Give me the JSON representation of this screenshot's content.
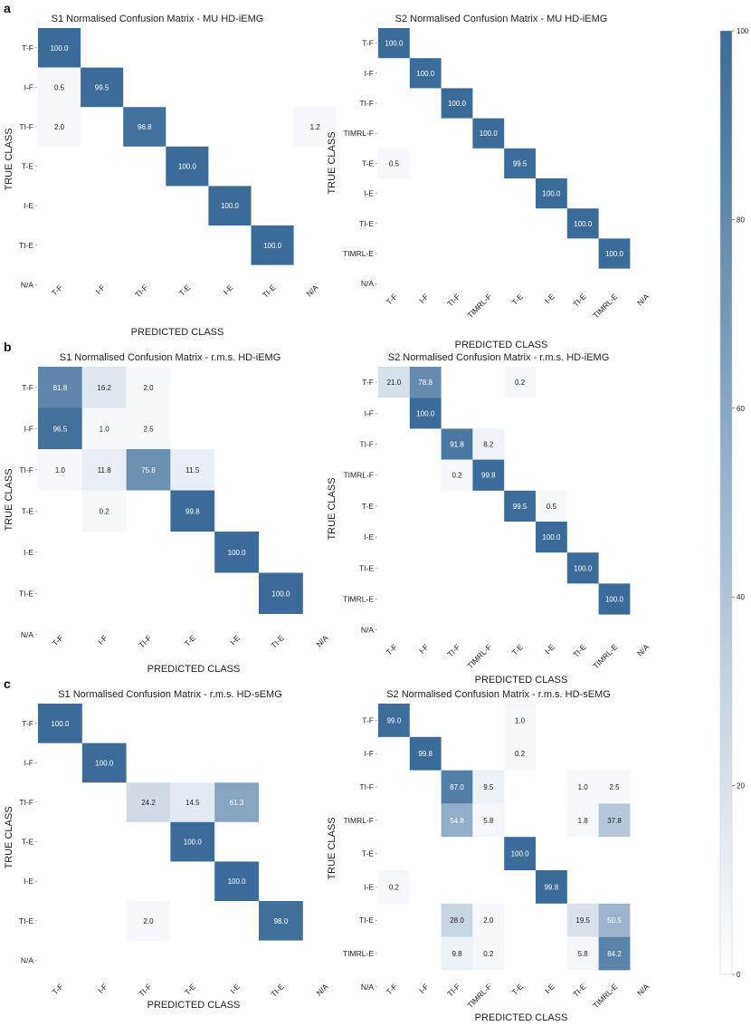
{
  "panel_labels": [
    "a",
    "b",
    "c"
  ],
  "colorbar": {
    "ticks": [
      "100",
      "80",
      "60",
      "40",
      "20",
      "0"
    ],
    "color_low": "#ffffff",
    "color_high": "#3b6c99"
  },
  "colors": {
    "cell_high": "#3b6c99",
    "cell_low": "#f7f9fc",
    "text_dark_bg": "#ffffff",
    "text_light_bg": "#222222"
  },
  "chart_data": [
    {
      "type": "heatmap",
      "title": "S1 Normalised Confusion Matrix - MU HD-iEMG",
      "xlabel": "PREDICTED CLASS",
      "ylabel": "TRUE CLASS",
      "rows": [
        "T-F",
        "I-F",
        "TI-F",
        "T-E",
        "I-E",
        "TI-E",
        "N/A"
      ],
      "cols": [
        "T-F",
        "I-F",
        "TI-F",
        "T-E",
        "I-E",
        "TI-E",
        "N/A"
      ],
      "value_range": [
        0,
        100
      ],
      "cells": [
        [
          0,
          0,
          "100.0"
        ],
        [
          1,
          0,
          "0.5"
        ],
        [
          1,
          1,
          "99.5"
        ],
        [
          2,
          0,
          "2.0"
        ],
        [
          2,
          2,
          "96.8"
        ],
        [
          2,
          6,
          "1.2"
        ],
        [
          3,
          3,
          "100.0"
        ],
        [
          4,
          4,
          "100.0"
        ],
        [
          5,
          5,
          "100.0"
        ]
      ]
    },
    {
      "type": "heatmap",
      "title": "S2 Normalised Confusion Matrix - MU HD-iEMG",
      "xlabel": "PREDICTED CLASS",
      "ylabel": "TRUE CLASS",
      "rows": [
        "T-F",
        "I-F",
        "TI-F",
        "TIMRL-F",
        "T-E",
        "I-E",
        "TI-E",
        "TIMRL-E",
        "N/A"
      ],
      "cols": [
        "T-F",
        "I-F",
        "TI-F",
        "TIMRL-F",
        "T-E",
        "I-E",
        "TI-E",
        "TIMRL-E",
        "N/A"
      ],
      "value_range": [
        0,
        100
      ],
      "cells": [
        [
          0,
          0,
          "100.0"
        ],
        [
          1,
          1,
          "100.0"
        ],
        [
          2,
          2,
          "100.0"
        ],
        [
          3,
          3,
          "100.0"
        ],
        [
          4,
          0,
          "0.5"
        ],
        [
          4,
          4,
          "99.5"
        ],
        [
          5,
          5,
          "100.0"
        ],
        [
          6,
          6,
          "100.0"
        ],
        [
          7,
          7,
          "100.0"
        ]
      ]
    },
    {
      "type": "heatmap",
      "title": "S1 Normalised Confusion Matrix - r.m.s. HD-iEMG",
      "xlabel": "PREDICTED CLASS",
      "ylabel": "TRUE CLASS",
      "rows": [
        "T-F",
        "I-F",
        "TI-F",
        "T-E",
        "I-E",
        "TI-E",
        "N/A"
      ],
      "cols": [
        "T-F",
        "I-F",
        "TI-F",
        "T-E",
        "I-E",
        "TI-E",
        "N/A"
      ],
      "value_range": [
        0,
        100
      ],
      "cells": [
        [
          0,
          0,
          "81.8"
        ],
        [
          0,
          1,
          "16.2"
        ],
        [
          0,
          2,
          "2.0"
        ],
        [
          1,
          0,
          "96.5"
        ],
        [
          1,
          1,
          "1.0"
        ],
        [
          1,
          2,
          "2.5"
        ],
        [
          2,
          0,
          "1.0"
        ],
        [
          2,
          1,
          "11.8"
        ],
        [
          2,
          2,
          "75.8"
        ],
        [
          2,
          3,
          "11.5"
        ],
        [
          3,
          1,
          "0.2"
        ],
        [
          3,
          3,
          "99.8"
        ],
        [
          4,
          4,
          "100.0"
        ],
        [
          5,
          5,
          "100.0"
        ]
      ]
    },
    {
      "type": "heatmap",
      "title": "S2 Normalised Confusion Matrix - r.m.s. HD-iEMG",
      "xlabel": "PREDICTED CLASS",
      "ylabel": "TRUE CLASS",
      "rows": [
        "T-F",
        "I-F",
        "TI-F",
        "TIMRL-F",
        "T-E",
        "I-E",
        "TI-E",
        "TIMRL-E",
        "N/A"
      ],
      "cols": [
        "T-F",
        "I-F",
        "TI-F",
        "TIMRL-F",
        "T-E",
        "I-E",
        "TI-E",
        "TIMRL-E",
        "N/A"
      ],
      "value_range": [
        0,
        100
      ],
      "cells": [
        [
          0,
          0,
          "21.0"
        ],
        [
          0,
          1,
          "78.8"
        ],
        [
          0,
          4,
          "0.2"
        ],
        [
          1,
          1,
          "100.0"
        ],
        [
          2,
          2,
          "91.8"
        ],
        [
          2,
          3,
          "8.2"
        ],
        [
          3,
          2,
          "0.2"
        ],
        [
          3,
          3,
          "99.8"
        ],
        [
          4,
          4,
          "99.5"
        ],
        [
          4,
          5,
          "0.5"
        ],
        [
          5,
          5,
          "100.0"
        ],
        [
          6,
          6,
          "100.0"
        ],
        [
          7,
          7,
          "100.0"
        ]
      ]
    },
    {
      "type": "heatmap",
      "title": "S1 Normalised Confusion Matrix - r.m.s. HD-sEMG",
      "xlabel": "PREDICTED CLASS",
      "ylabel": "TRUE CLASS",
      "rows": [
        "T-F",
        "I-F",
        "TI-F",
        "T-E",
        "I-E",
        "TI-E",
        "N/A"
      ],
      "cols": [
        "T-F",
        "I-F",
        "TI-F",
        "T-E",
        "I-E",
        "TI-E",
        "N/A"
      ],
      "value_range": [
        0,
        100
      ],
      "cells": [
        [
          0,
          0,
          "100.0"
        ],
        [
          1,
          1,
          "100.0"
        ],
        [
          2,
          2,
          "24.2"
        ],
        [
          2,
          3,
          "14.5"
        ],
        [
          2,
          4,
          "61.3"
        ],
        [
          3,
          3,
          "100.0"
        ],
        [
          4,
          4,
          "100.0"
        ],
        [
          5,
          2,
          "2.0"
        ],
        [
          5,
          5,
          "98.0"
        ]
      ]
    },
    {
      "type": "heatmap",
      "title": "S2 Normalised Confusion Matrix - r.m.s. HD-sEMG",
      "xlabel": "PREDICTED CLASS",
      "ylabel": "TRUE CLASS",
      "rows": [
        "T-F",
        "I-F",
        "TI-F",
        "TIMRL-F",
        "T-E",
        "I-E",
        "TI-E",
        "TIMRL-E",
        "N/A"
      ],
      "cols": [
        "T-F",
        "I-F",
        "TI-F",
        "TIMRL-F",
        "T-E",
        "I-E",
        "TI-E",
        "TIMRL-E",
        "N/A"
      ],
      "value_range": [
        0,
        100
      ],
      "cells": [
        [
          0,
          0,
          "99.0"
        ],
        [
          0,
          4,
          "1.0"
        ],
        [
          1,
          1,
          "99.8"
        ],
        [
          1,
          4,
          "0.2"
        ],
        [
          2,
          2,
          "87.0"
        ],
        [
          2,
          3,
          "9.5"
        ],
        [
          2,
          6,
          "1.0"
        ],
        [
          2,
          7,
          "2.5"
        ],
        [
          3,
          2,
          "54.8"
        ],
        [
          3,
          3,
          "5.8"
        ],
        [
          3,
          6,
          "1.8"
        ],
        [
          3,
          7,
          "37.8"
        ],
        [
          4,
          4,
          "100.0"
        ],
        [
          5,
          0,
          "0.2"
        ],
        [
          5,
          5,
          "99.8"
        ],
        [
          6,
          2,
          "28.0"
        ],
        [
          6,
          3,
          "2.0"
        ],
        [
          6,
          6,
          "19.5"
        ],
        [
          6,
          7,
          "50.5"
        ],
        [
          7,
          2,
          "9.8"
        ],
        [
          7,
          3,
          "0.2"
        ],
        [
          7,
          6,
          "5.8"
        ],
        [
          7,
          7,
          "84.2"
        ]
      ]
    }
  ]
}
